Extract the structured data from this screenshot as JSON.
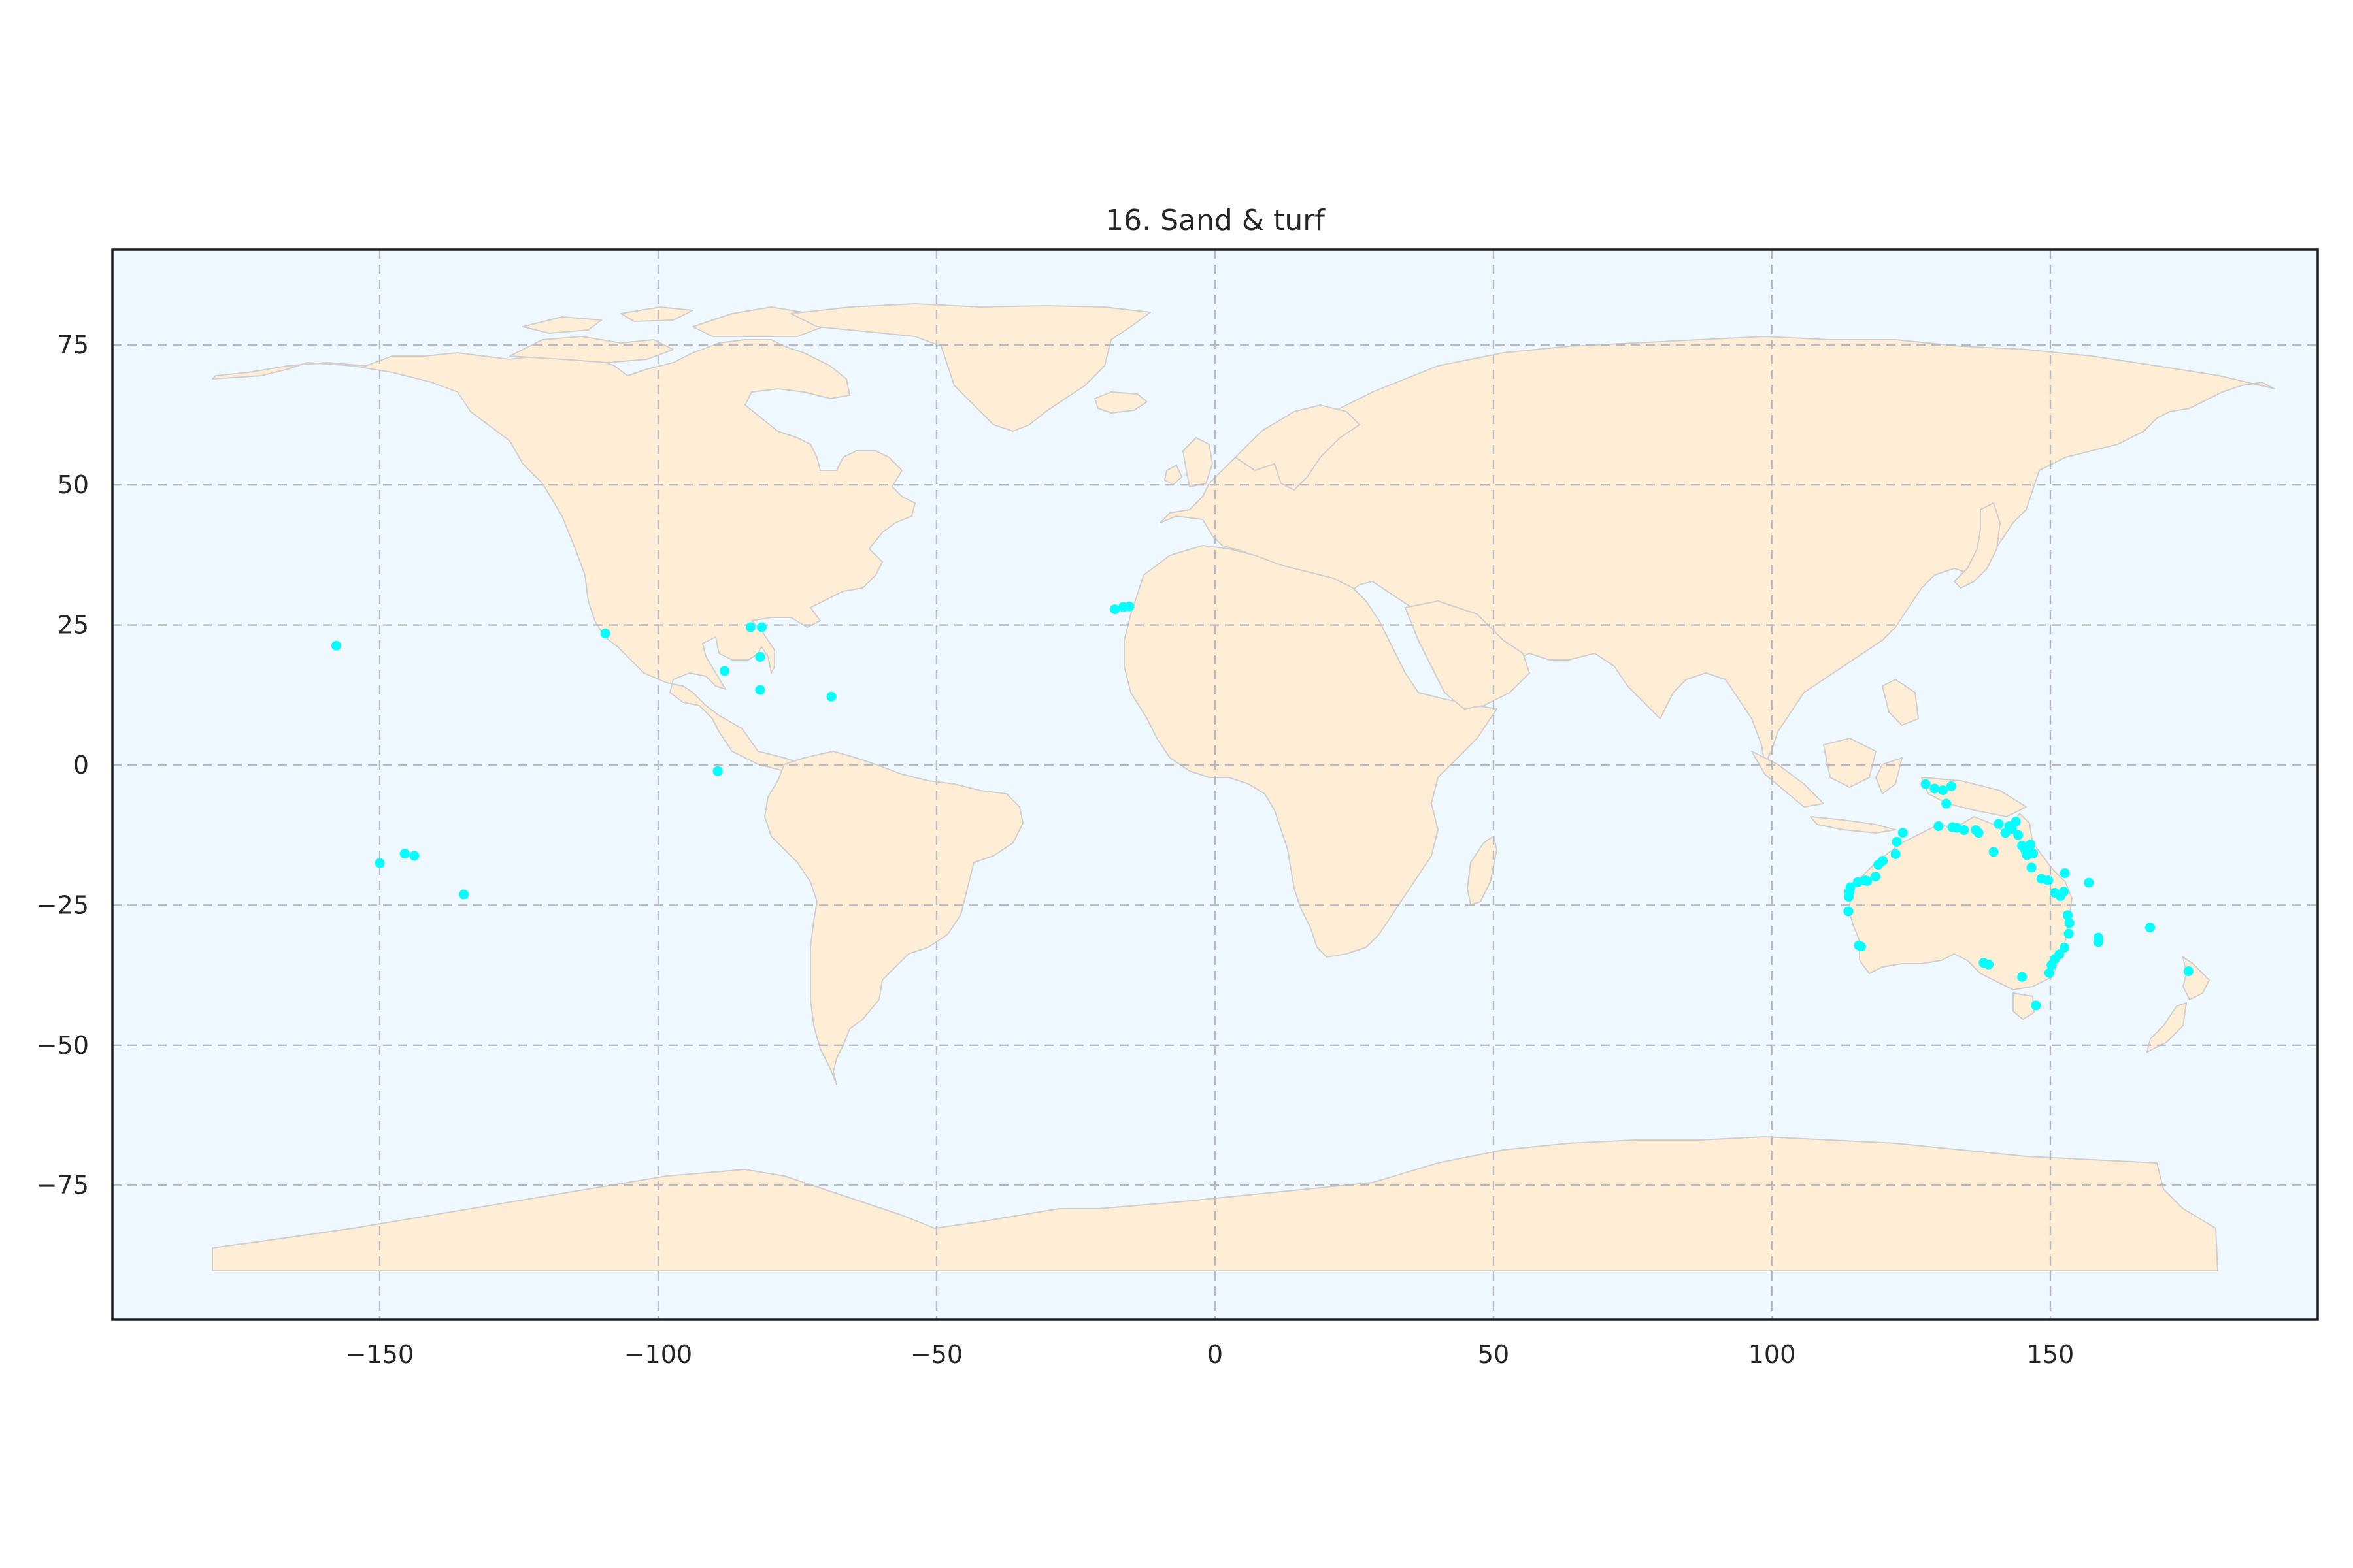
{
  "chart_data": {
    "type": "scatter",
    "title": "16. Sand & turf",
    "xlabel": "",
    "ylabel": "",
    "xlim": [
      -198,
      198
    ],
    "ylim": [
      -99,
      92
    ],
    "xticks": [
      -150,
      -100,
      -50,
      0,
      50,
      100,
      150
    ],
    "yticks": [
      -75,
      -50,
      -25,
      0,
      25,
      50,
      75
    ],
    "xtick_labels": [
      "−150",
      "−100",
      "−50",
      "0",
      "50",
      "100",
      "150"
    ],
    "ytick_labels": [
      "−75",
      "−50",
      "−25",
      "0",
      "25",
      "50",
      "75"
    ],
    "grid": true,
    "colors": {
      "ocean": "#f0f8ff",
      "land": "#ffedd6",
      "coast": "#cfcfcf",
      "points": "#00ffff",
      "grid": "#b8bcc2"
    },
    "series": [
      {
        "points": [
          [
            -157.8,
            21.3
          ],
          [
            -150,
            -17.5
          ],
          [
            -145.5,
            -15.8
          ],
          [
            -143.8,
            -16.2
          ],
          [
            -134.9,
            -23.1
          ],
          [
            -109.5,
            23.5
          ],
          [
            -89.3,
            -1.1
          ],
          [
            -88.1,
            16.8
          ],
          [
            -83.4,
            24.6
          ],
          [
            -81.4,
            24.6
          ],
          [
            -81.7,
            19.3
          ],
          [
            -81.7,
            13.4
          ],
          [
            -68.9,
            12.2
          ],
          [
            -18,
            27.8
          ],
          [
            -16.5,
            28.2
          ],
          [
            -15.4,
            28.3
          ],
          [
            127.6,
            -3.4
          ],
          [
            129.2,
            -4.2
          ],
          [
            130.7,
            -4.5
          ],
          [
            131.3,
            -6.9
          ],
          [
            132.2,
            -3.8
          ],
          [
            129.9,
            -10.9
          ],
          [
            132.4,
            -11.1
          ],
          [
            133.2,
            -11.2
          ],
          [
            134.5,
            -11.6
          ],
          [
            136.6,
            -11.6
          ],
          [
            137.1,
            -12.1
          ],
          [
            139.8,
            -15.5
          ],
          [
            140.7,
            -10.5
          ],
          [
            141.9,
            -12.1
          ],
          [
            142.6,
            -10.9
          ],
          [
            143.1,
            -11.4
          ],
          [
            143.8,
            -10.1
          ],
          [
            144.2,
            -12.5
          ],
          [
            144.9,
            -14.4
          ],
          [
            145.5,
            -15.3
          ],
          [
            145.8,
            -16.1
          ],
          [
            146.4,
            -14.2
          ],
          [
            146.6,
            -18.3
          ],
          [
            146.9,
            -15.8
          ],
          [
            148.4,
            -20.3
          ],
          [
            149.6,
            -20.6
          ],
          [
            150.8,
            -22.8
          ],
          [
            151.8,
            -23.4
          ],
          [
            152.6,
            -19.3
          ],
          [
            152.4,
            -22.6
          ],
          [
            153.1,
            -26.8
          ],
          [
            153.4,
            -28.2
          ],
          [
            153.3,
            -30.1
          ],
          [
            152.5,
            -32.6
          ],
          [
            151.6,
            -33.8
          ],
          [
            150.8,
            -34.6
          ],
          [
            150.2,
            -35.7
          ],
          [
            149.8,
            -37.1
          ],
          [
            144.9,
            -37.8
          ],
          [
            147.4,
            -42.9
          ],
          [
            138,
            -35.3
          ],
          [
            138.9,
            -35.6
          ],
          [
            115.6,
            -32.2
          ],
          [
            116,
            -32.4
          ],
          [
            113.7,
            -26.1
          ],
          [
            113.8,
            -23.5
          ],
          [
            113.9,
            -22.6
          ],
          [
            114.1,
            -21.8
          ],
          [
            115.4,
            -20.9
          ],
          [
            116.7,
            -20.6
          ],
          [
            117.1,
            -20.7
          ],
          [
            118.6,
            -19.9
          ],
          [
            119.1,
            -17.8
          ],
          [
            119.9,
            -17.1
          ],
          [
            122.2,
            -15.9
          ],
          [
            122.4,
            -13.7
          ],
          [
            123.5,
            -12.1
          ],
          [
            156.9,
            -21
          ],
          [
            158.6,
            -30.8
          ],
          [
            158.6,
            -31.6
          ],
          [
            167.9,
            -29
          ],
          [
            174.8,
            -36.8
          ]
        ]
      }
    ]
  }
}
